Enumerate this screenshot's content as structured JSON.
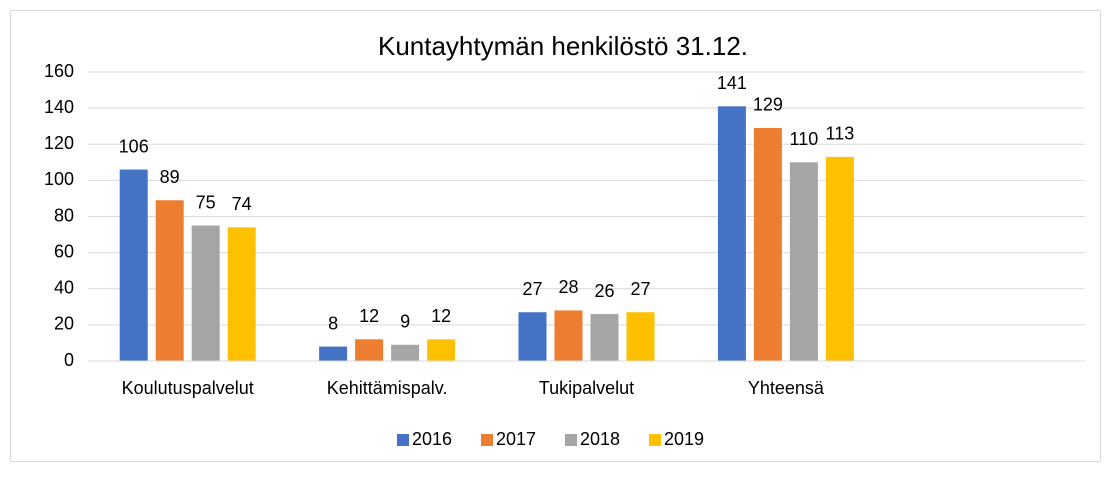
{
  "chart_data": {
    "type": "bar",
    "title": "Kuntayhtymän henkilöstö 31.12.",
    "categories": [
      "Koulutuspalvelut",
      "Kehittämispalv.",
      "Tukipalvelut",
      "Yhteensä",
      null
    ],
    "series": [
      {
        "name": "2016",
        "color": "#4472c4",
        "values": [
          106,
          8,
          27,
          141,
          null
        ]
      },
      {
        "name": "2017",
        "color": "#ed7d31",
        "values": [
          89,
          12,
          28,
          129,
          null
        ]
      },
      {
        "name": "2018",
        "color": "#a5a5a5",
        "values": [
          75,
          9,
          26,
          110,
          null
        ]
      },
      {
        "name": "2019",
        "color": "#ffc000",
        "values": [
          74,
          12,
          27,
          113,
          null
        ]
      }
    ],
    "ylim": [
      0,
      160
    ],
    "yticks": [
      0,
      20,
      40,
      60,
      80,
      100,
      120,
      140,
      160
    ],
    "grid": true,
    "legend": "bottom"
  }
}
